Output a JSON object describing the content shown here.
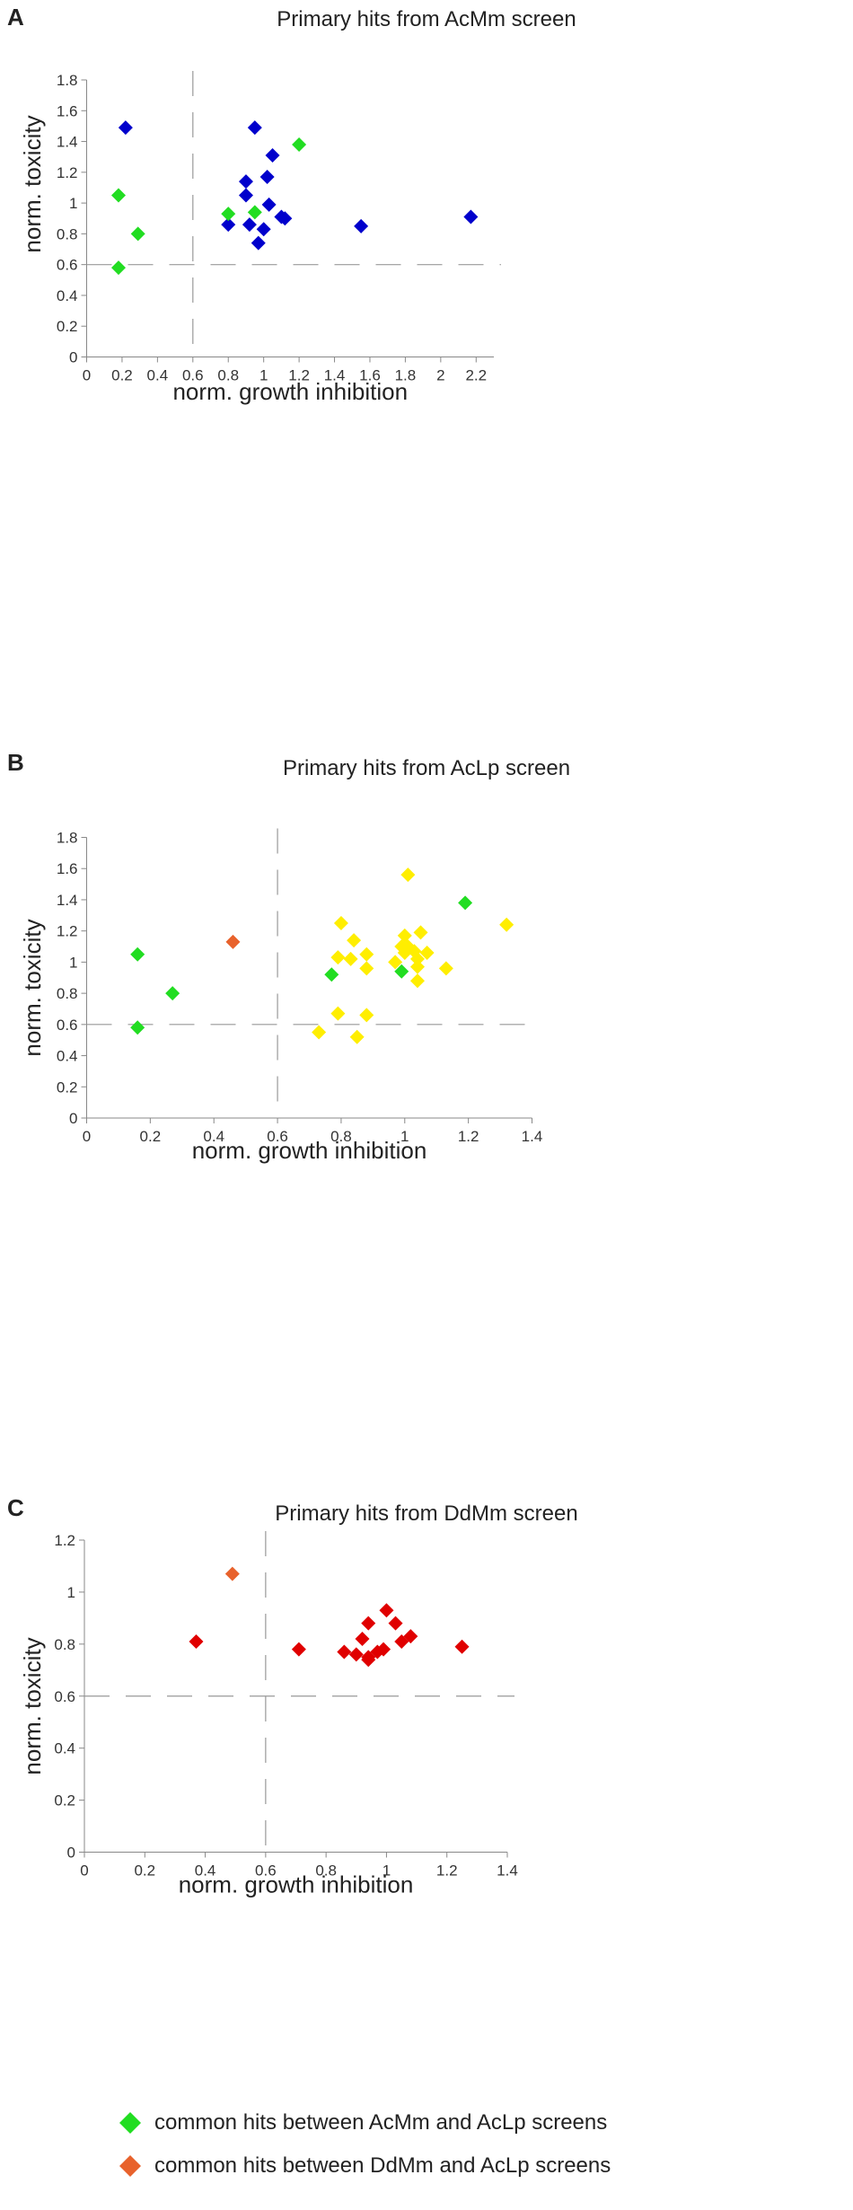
{
  "chart_data": [
    {
      "panel": "A",
      "type": "scatter",
      "title": "Primary hits from AcMm screen",
      "xlabel": "norm. growth inhibition",
      "ylabel": "norm. toxicity",
      "xlim": [
        0,
        2.3
      ],
      "ylim": [
        0,
        1.8
      ],
      "xticks": [
        "0",
        "0.2",
        "0.4",
        "0.6",
        "0.8",
        "1",
        "1.2",
        "1.4",
        "1.6",
        "1.8",
        "2",
        "2.2"
      ],
      "xtick_values": [
        0,
        0.2,
        0.4,
        0.6,
        0.8,
        1.0,
        1.2,
        1.4,
        1.6,
        1.8,
        2.0,
        2.2
      ],
      "yticks": [
        "0",
        "0.2",
        "0.4",
        "0.6",
        "0.8",
        "1",
        "1.2",
        "1.4",
        "1.6",
        "1.8"
      ],
      "ytick_values": [
        0,
        0.2,
        0.4,
        0.6,
        0.8,
        1.0,
        1.2,
        1.4,
        1.6,
        1.8
      ],
      "guides": {
        "x": 0.6,
        "y": 0.6
      },
      "series": [
        {
          "color": "#0000cc",
          "points": [
            [
              0.22,
              1.49
            ],
            [
              0.95,
              1.49
            ],
            [
              1.05,
              1.31
            ],
            [
              1.02,
              1.17
            ],
            [
              0.9,
              1.14
            ],
            [
              0.9,
              1.05
            ],
            [
              1.03,
              0.99
            ],
            [
              1.1,
              0.91
            ],
            [
              1.12,
              0.9
            ],
            [
              0.8,
              0.86
            ],
            [
              0.92,
              0.86
            ],
            [
              1.0,
              0.83
            ],
            [
              0.97,
              0.74
            ],
            [
              1.55,
              0.85
            ],
            [
              2.17,
              0.91
            ]
          ]
        },
        {
          "color": "#22dd22",
          "points": [
            [
              1.2,
              1.38
            ],
            [
              0.18,
              1.05
            ],
            [
              0.29,
              0.8
            ],
            [
              0.18,
              0.58
            ],
            [
              0.8,
              0.93
            ],
            [
              0.95,
              0.94
            ]
          ]
        }
      ]
    },
    {
      "panel": "B",
      "type": "scatter",
      "title": "Primary hits from AcLp screen",
      "xlabel": "norm. growth inhibition",
      "ylabel": "norm. toxicity",
      "xlim": [
        0,
        1.4
      ],
      "ylim": [
        0,
        1.8
      ],
      "xticks": [
        "0",
        "0.2",
        "0.4",
        "0.6",
        "0.8",
        "1",
        "1.2",
        "1.4"
      ],
      "xtick_values": [
        0,
        0.2,
        0.4,
        0.6,
        0.8,
        1.0,
        1.2,
        1.4
      ],
      "yticks": [
        "0",
        "0.2",
        "0.4",
        "0.6",
        "0.8",
        "1",
        "1.2",
        "1.4",
        "1.6",
        "1.8"
      ],
      "ytick_values": [
        0,
        0.2,
        0.4,
        0.6,
        0.8,
        1.0,
        1.2,
        1.4,
        1.6,
        1.8
      ],
      "guides": {
        "x": 0.6,
        "y": 0.6
      },
      "series": [
        {
          "color": "#ffee00",
          "points": [
            [
              1.01,
              1.56
            ],
            [
              0.8,
              1.25
            ],
            [
              0.84,
              1.14
            ],
            [
              0.79,
              1.03
            ],
            [
              0.83,
              1.02
            ],
            [
              0.88,
              1.05
            ],
            [
              0.88,
              0.96
            ],
            [
              0.79,
              0.67
            ],
            [
              0.88,
              0.66
            ],
            [
              0.73,
              0.55
            ],
            [
              0.85,
              0.52
            ],
            [
              0.97,
              1.0
            ],
            [
              0.99,
              1.1
            ],
            [
              1.0,
              1.06
            ],
            [
              1.0,
              1.17
            ],
            [
              1.01,
              1.1
            ],
            [
              1.03,
              1.07
            ],
            [
              1.05,
              1.19
            ],
            [
              1.07,
              1.06
            ],
            [
              1.04,
              1.02
            ],
            [
              1.04,
              0.97
            ],
            [
              1.04,
              0.88
            ],
            [
              1.13,
              0.96
            ],
            [
              1.32,
              1.24
            ]
          ]
        },
        {
          "color": "#22dd22",
          "points": [
            [
              0.16,
              1.05
            ],
            [
              0.27,
              0.8
            ],
            [
              0.16,
              0.58
            ],
            [
              0.77,
              0.92
            ],
            [
              0.99,
              0.94
            ],
            [
              1.19,
              1.38
            ]
          ]
        },
        {
          "color": "#e8622c",
          "points": [
            [
              0.46,
              1.13
            ]
          ]
        }
      ]
    },
    {
      "panel": "C",
      "type": "scatter",
      "title": "Primary hits from DdMm screen",
      "xlabel": "norm. growth inhibition",
      "ylabel": "norm. toxicity",
      "xlim": [
        0,
        1.4
      ],
      "ylim": [
        0,
        1.2
      ],
      "xticks": [
        "0",
        "0.2",
        "0.4",
        "0.6",
        "0.8",
        "1",
        "1.2",
        "1.4"
      ],
      "xtick_values": [
        0,
        0.2,
        0.4,
        0.6,
        0.8,
        1.0,
        1.2,
        1.4
      ],
      "yticks": [
        "0",
        "0.2",
        "0.4",
        "0.6",
        "0.8",
        "1",
        "1.2"
      ],
      "ytick_values": [
        0,
        0.2,
        0.4,
        0.6,
        0.8,
        1.0,
        1.2
      ],
      "guides": {
        "x": 0.6,
        "y": 0.6
      },
      "series": [
        {
          "color": "#e00000",
          "points": [
            [
              0.37,
              0.81
            ],
            [
              0.71,
              0.78
            ],
            [
              0.86,
              0.77
            ],
            [
              0.9,
              0.76
            ],
            [
              0.92,
              0.82
            ],
            [
              0.94,
              0.88
            ],
            [
              0.94,
              0.75
            ],
            [
              0.94,
              0.74
            ],
            [
              0.97,
              0.77
            ],
            [
              0.99,
              0.78
            ],
            [
              1.0,
              0.93
            ],
            [
              1.03,
              0.88
            ],
            [
              1.05,
              0.81
            ],
            [
              1.08,
              0.83
            ],
            [
              1.25,
              0.79
            ]
          ]
        },
        {
          "color": "#e8622c",
          "points": [
            [
              0.49,
              1.07
            ]
          ]
        }
      ]
    }
  ],
  "legend": [
    {
      "label": "common hits between AcMm and AcLp screens",
      "color": "#22dd22"
    },
    {
      "label": "common hits between DdMm and AcLp screens",
      "color": "#e8622c"
    }
  ]
}
